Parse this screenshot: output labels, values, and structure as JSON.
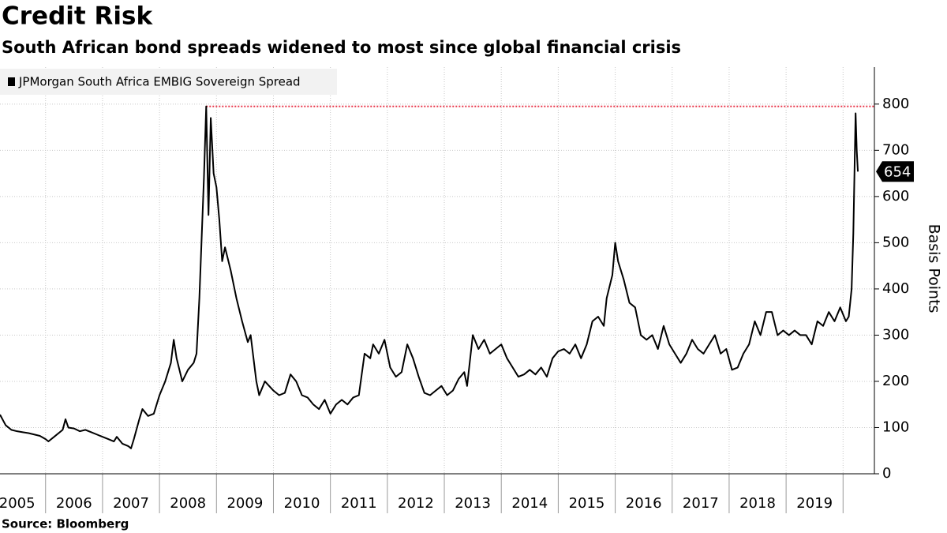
{
  "chart_data": {
    "type": "line",
    "title": "Credit Risk",
    "subtitle": "South African bond spreads widened to most since global financial crisis",
    "source": "Source:  Bloomberg",
    "y_axis_label": "Basis Points",
    "xlim": [
      2005.2,
      2020.55
    ],
    "xticks": [
      2005,
      2006,
      2007,
      2008,
      2009,
      2010,
      2011,
      2012,
      2013,
      2014,
      2015,
      2016,
      2017,
      2018,
      2019
    ],
    "ylim": [
      0,
      880
    ],
    "yticks": [
      0,
      100,
      200,
      300,
      400,
      500,
      600,
      700,
      800
    ],
    "grid": true,
    "legend": "top-left",
    "max_line_color": "#e8374a",
    "series": [
      {
        "name": "JPMorgan South Africa EMBIG Sovereign Spread",
        "color": "#000000",
        "x": [
          2005.2,
          2005.3,
          2005.4,
          2005.5,
          2005.6,
          2005.7,
          2005.8,
          2005.9,
          2006.0,
          2006.05,
          2006.15,
          2006.3,
          2006.35,
          2006.4,
          2006.5,
          2006.6,
          2006.7,
          2006.8,
          2006.9,
          2007.0,
          2007.1,
          2007.2,
          2007.25,
          2007.35,
          2007.45,
          2007.5,
          2007.55,
          2007.65,
          2007.7,
          2007.8,
          2007.9,
          2008.0,
          2008.1,
          2008.2,
          2008.25,
          2008.3,
          2008.4,
          2008.5,
          2008.6,
          2008.65,
          2008.7,
          2008.78,
          2008.82,
          2008.86,
          2008.9,
          2008.95,
          2009.0,
          2009.05,
          2009.1,
          2009.15,
          2009.25,
          2009.35,
          2009.45,
          2009.55,
          2009.6,
          2009.7,
          2009.75,
          2009.85,
          2010.0,
          2010.1,
          2010.2,
          2010.3,
          2010.4,
          2010.5,
          2010.6,
          2010.7,
          2010.8,
          2010.9,
          2011.0,
          2011.1,
          2011.2,
          2011.3,
          2011.4,
          2011.5,
          2011.6,
          2011.7,
          2011.75,
          2011.85,
          2011.95,
          2012.05,
          2012.15,
          2012.25,
          2012.35,
          2012.45,
          2012.55,
          2012.65,
          2012.75,
          2012.85,
          2012.95,
          2013.05,
          2013.15,
          2013.25,
          2013.35,
          2013.4,
          2013.5,
          2013.6,
          2013.7,
          2013.8,
          2013.9,
          2014.0,
          2014.1,
          2014.2,
          2014.3,
          2014.4,
          2014.5,
          2014.6,
          2014.7,
          2014.8,
          2014.9,
          2015.0,
          2015.1,
          2015.2,
          2015.3,
          2015.4,
          2015.5,
          2015.6,
          2015.7,
          2015.8,
          2015.85,
          2015.95,
          2016.0,
          2016.05,
          2016.15,
          2016.25,
          2016.35,
          2016.45,
          2016.55,
          2016.65,
          2016.75,
          2016.85,
          2016.95,
          2017.05,
          2017.15,
          2017.25,
          2017.35,
          2017.45,
          2017.55,
          2017.65,
          2017.75,
          2017.85,
          2017.95,
          2018.05,
          2018.15,
          2018.25,
          2018.35,
          2018.45,
          2018.55,
          2018.65,
          2018.75,
          2018.85,
          2018.95,
          2019.05,
          2019.15,
          2019.25,
          2019.35,
          2019.45,
          2019.55,
          2019.65,
          2019.75,
          2019.85,
          2019.95,
          2020.05,
          2020.1,
          2020.15,
          2020.18,
          2020.2,
          2020.22,
          2020.24,
          2020.26
        ],
        "values": [
          128,
          105,
          95,
          92,
          90,
          88,
          85,
          82,
          75,
          70,
          80,
          95,
          118,
          100,
          98,
          92,
          95,
          90,
          85,
          80,
          75,
          70,
          80,
          65,
          60,
          55,
          75,
          120,
          140,
          125,
          130,
          170,
          200,
          240,
          290,
          250,
          200,
          225,
          240,
          260,
          380,
          640,
          795,
          560,
          770,
          650,
          620,
          550,
          460,
          490,
          440,
          380,
          330,
          285,
          300,
          200,
          170,
          200,
          180,
          170,
          175,
          215,
          200,
          170,
          165,
          150,
          140,
          160,
          130,
          150,
          160,
          150,
          165,
          170,
          260,
          250,
          280,
          260,
          290,
          230,
          210,
          220,
          280,
          250,
          210,
          175,
          170,
          180,
          190,
          170,
          180,
          205,
          220,
          190,
          300,
          270,
          290,
          260,
          270,
          280,
          250,
          230,
          210,
          215,
          225,
          215,
          230,
          210,
          250,
          265,
          270,
          260,
          280,
          250,
          280,
          330,
          340,
          320,
          380,
          430,
          500,
          460,
          420,
          370,
          360,
          300,
          290,
          300,
          270,
          320,
          280,
          260,
          240,
          260,
          290,
          270,
          260,
          280,
          300,
          260,
          270,
          225,
          230,
          260,
          280,
          330,
          300,
          350,
          350,
          300,
          310,
          300,
          310,
          300,
          300,
          280,
          330,
          320,
          350,
          330,
          360,
          330,
          340,
          400,
          520,
          650,
          780,
          700,
          654
        ]
      }
    ]
  }
}
